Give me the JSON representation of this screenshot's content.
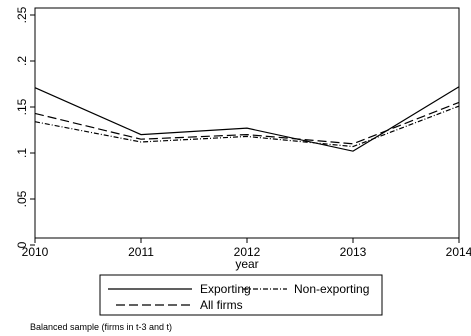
{
  "chart_data": {
    "type": "line",
    "xlabel": "year",
    "ylabel": "",
    "x": [
      2010,
      2011,
      2012,
      2013,
      2014
    ],
    "xlim": [
      2010,
      2014
    ],
    "ylim": [
      0,
      0.25
    ],
    "yticks": [
      0,
      0.05,
      0.1,
      0.15,
      0.2,
      0.25
    ],
    "ytick_labels": [
      "0",
      ".05",
      ".1",
      ".15",
      ".2",
      ".25"
    ],
    "xticks": [
      2010,
      2011,
      2012,
      2013,
      2014
    ],
    "xtick_labels": [
      "2010",
      "2011",
      "2012",
      "2013",
      "2014"
    ],
    "grid": false,
    "legend_position": "bottom",
    "series": [
      {
        "name": "Exporting",
        "style": "solid",
        "color": "#000000",
        "values": [
          0.171,
          0.12,
          0.127,
          0.102,
          0.172
        ]
      },
      {
        "name": "Non-exporting",
        "style": "dashdot",
        "color": "#000000",
        "values": [
          0.134,
          0.112,
          0.118,
          0.107,
          0.151
        ]
      },
      {
        "name": "All firms",
        "style": "dashed",
        "color": "#000000",
        "values": [
          0.143,
          0.115,
          0.12,
          0.11,
          0.155
        ]
      }
    ],
    "note": "Balanced sample (firms in t-3 and t)"
  }
}
